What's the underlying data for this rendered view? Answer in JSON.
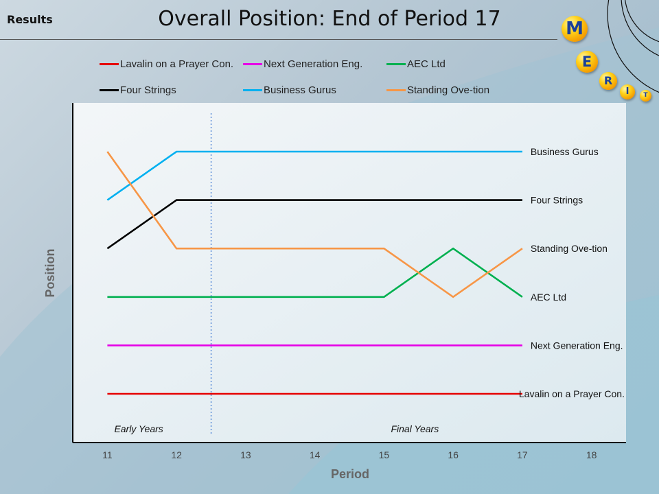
{
  "header": {
    "section": "Results",
    "title": "Overall Position: End of Period 17"
  },
  "logo": {
    "letters": [
      "M",
      "E",
      "R",
      "I",
      "T"
    ]
  },
  "legend": [
    {
      "label": "Lavalin on a Prayer Con.",
      "color": "#e60000"
    },
    {
      "label": "Next Generation Eng.",
      "color": "#e600e6"
    },
    {
      "label": "AEC Ltd",
      "color": "#00b04f"
    },
    {
      "label": "Four Strings",
      "color": "#000000"
    },
    {
      "label": "Business Gurus",
      "color": "#00b0f0"
    },
    {
      "label": "Standing Ove-tion",
      "color": "#f79646"
    }
  ],
  "chart_data": {
    "type": "line",
    "xlabel": "Period",
    "ylabel": "Position",
    "x_ticks": [
      11,
      12,
      13,
      14,
      15,
      16,
      17,
      18
    ],
    "xlim": [
      10.5,
      18.5
    ],
    "y_levels": 6,
    "grid": false,
    "legend_position": "top",
    "divider_x": 12.5,
    "annotations": [
      {
        "text": "Early Years",
        "x": 11.1
      },
      {
        "text": "Final Years",
        "x": 15.1
      }
    ],
    "series": [
      {
        "name": "Lavalin on a Prayer Con.",
        "color": "#e60000",
        "x": [
          11,
          12,
          13,
          14,
          15,
          16,
          17
        ],
        "y": [
          6,
          6,
          6,
          6,
          6,
          6,
          6
        ]
      },
      {
        "name": "Next Generation Eng.",
        "color": "#e600e6",
        "x": [
          11,
          12,
          13,
          14,
          15,
          16,
          17
        ],
        "y": [
          5,
          5,
          5,
          5,
          5,
          5,
          5
        ]
      },
      {
        "name": "AEC Ltd",
        "color": "#00b04f",
        "x": [
          11,
          12,
          13,
          14,
          15,
          16,
          17
        ],
        "y": [
          4,
          4,
          4,
          4,
          4,
          3,
          4
        ]
      },
      {
        "name": "Four Strings",
        "color": "#000000",
        "x": [
          11,
          12,
          13,
          14,
          15,
          16,
          17
        ],
        "y": [
          3,
          2,
          2,
          2,
          2,
          2,
          2
        ]
      },
      {
        "name": "Business Gurus",
        "color": "#00b0f0",
        "x": [
          11,
          12,
          13,
          14,
          15,
          16,
          17
        ],
        "y": [
          2,
          1,
          1,
          1,
          1,
          1,
          1
        ]
      },
      {
        "name": "Standing Ove-tion",
        "color": "#f79646",
        "x": [
          11,
          12,
          13,
          14,
          15,
          16,
          17
        ],
        "y": [
          1,
          3,
          3,
          3,
          3,
          4,
          3
        ]
      }
    ]
  }
}
